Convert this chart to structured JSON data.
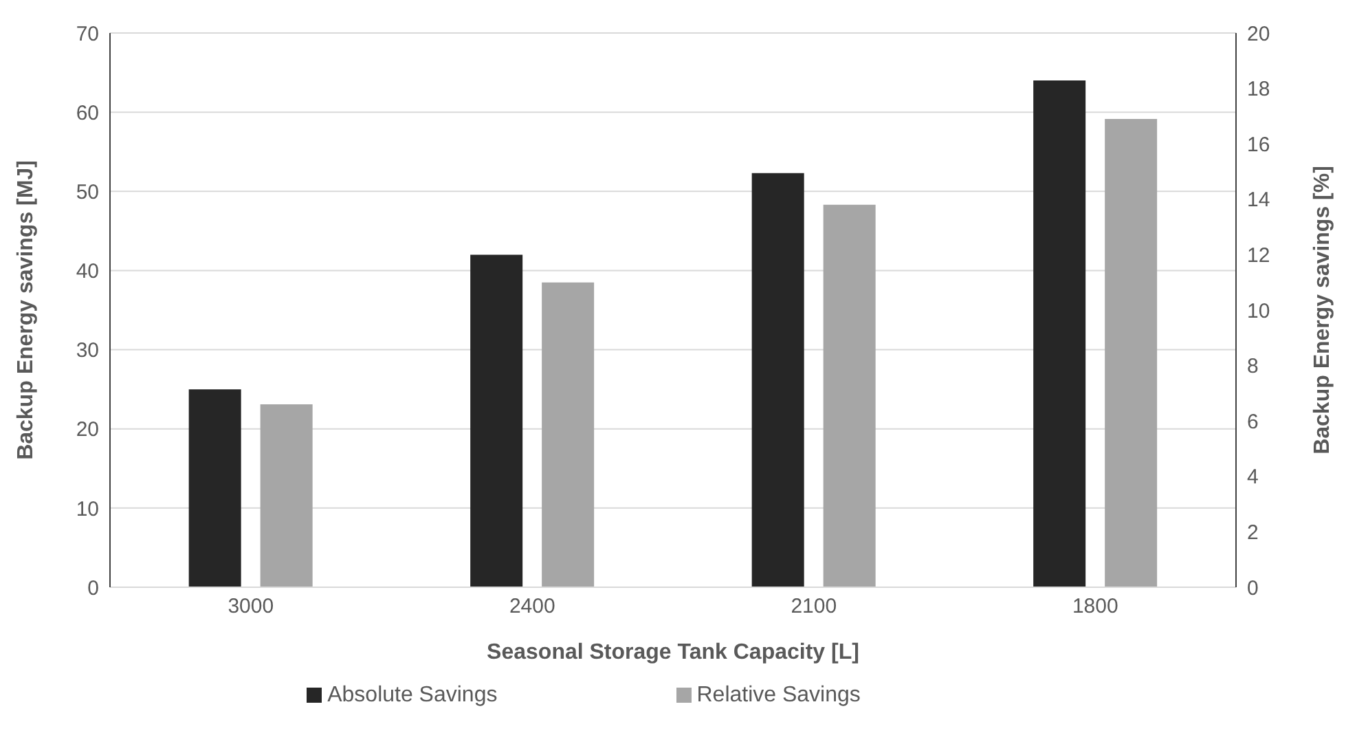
{
  "chart_data": {
    "type": "bar",
    "xlabel": "Seasonal Storage Tank Capacity [L]",
    "ylabel": "Backup Energy savings [MJ]",
    "y2label": "Backup Energy savings [%]",
    "categories": [
      "3000",
      "2400",
      "2100",
      "1800"
    ],
    "series": [
      {
        "name": "Absolute Savings",
        "color": "#262626",
        "values": [
          25,
          42,
          52.3,
          64
        ]
      },
      {
        "name": "Relative Savings",
        "color": "#a6a6a6",
        "axis": "y2",
        "values": [
          6.6,
          11,
          13.8,
          16.9
        ]
      }
    ],
    "ylim": [
      0,
      70
    ],
    "yticks": [
      0,
      10,
      20,
      30,
      40,
      50,
      60,
      70
    ],
    "y2lim": [
      0,
      20
    ],
    "y2ticks": [
      0,
      2,
      4,
      6,
      8,
      10,
      12,
      14,
      16,
      18,
      20
    ],
    "grid": "y",
    "legend": "bottom"
  }
}
